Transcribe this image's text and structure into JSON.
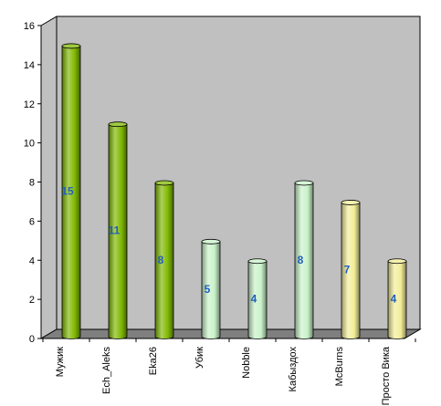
{
  "chart_data": {
    "type": "bar",
    "title": "",
    "xlabel": "",
    "ylabel": "",
    "ylim": [
      0,
      16
    ],
    "yticks": [
      0,
      2,
      4,
      6,
      8,
      10,
      12,
      14,
      16
    ],
    "grid": false,
    "legend": "none",
    "style": "3d-cylinder",
    "categories": [
      "Мужик",
      "Ech_Aleks",
      "Eka26",
      "Убик",
      "Nobble",
      "Кабыздох",
      "McBurns",
      "Просто Вика"
    ],
    "values": [
      15,
      11,
      8,
      5,
      4,
      8,
      7,
      4
    ],
    "data_labels": [
      "15",
      "11",
      "8",
      "5",
      "4",
      "8",
      "7",
      "4"
    ],
    "bar_colors": [
      "#7fb800",
      "#7fb800",
      "#7fb800",
      "#c9f2c9",
      "#c9f2c9",
      "#c9f2c9",
      "#f2ee98",
      "#f2ee98"
    ],
    "colors": {
      "plot_wall": "#c0c0c0",
      "plot_floor": "#7f7f7f",
      "axis": "#000000",
      "data_label": "#1f5fbf"
    }
  }
}
